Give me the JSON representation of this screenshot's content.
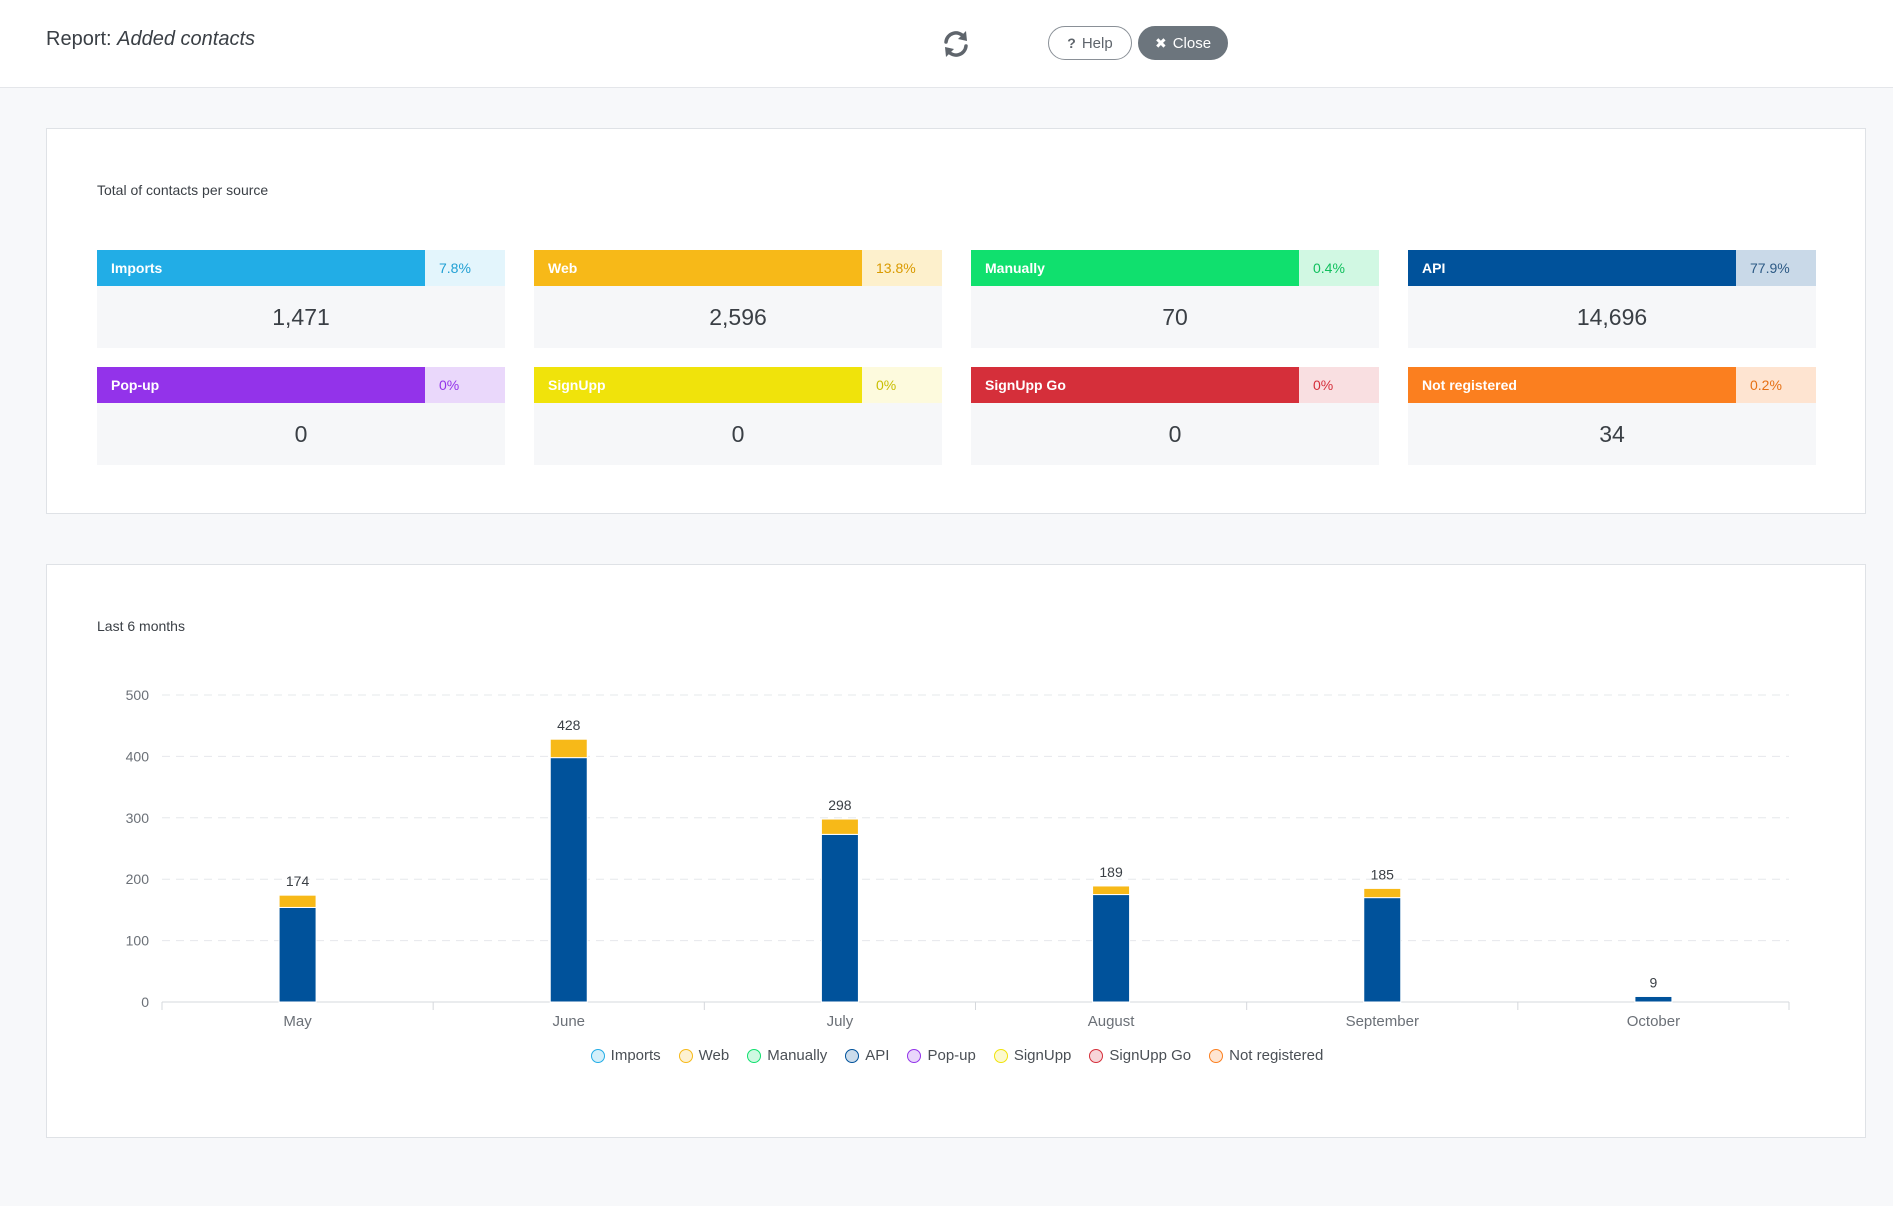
{
  "header": {
    "title_prefix": "Report:",
    "title_name": "Added contacts",
    "help_label": "Help",
    "help_icon": "?",
    "close_label": "Close",
    "close_icon": "✖"
  },
  "totals": {
    "title": "Total of contacts per source",
    "sources": [
      {
        "name": "Imports",
        "percent": "7.8%",
        "value": "1,471",
        "color": "#22ade6",
        "tint": "#e3f5fc",
        "text": "#1f9fd3"
      },
      {
        "name": "Web",
        "percent": "13.8%",
        "value": "2,596",
        "color": "#f7b918",
        "tint": "#fdf0cc",
        "text": "#d99a00"
      },
      {
        "name": "Manually",
        "percent": "0.4%",
        "value": "70",
        "color": "#10e06e",
        "tint": "#d1f8e3",
        "text": "#0fbf5c"
      },
      {
        "name": "API",
        "percent": "77.9%",
        "value": "14,696",
        "color": "#00529b",
        "tint": "#c9d9e8",
        "text": "#2d5a85"
      },
      {
        "name": "Pop-up",
        "percent": "0%",
        "value": "0",
        "color": "#9333ea",
        "tint": "#ead8fb",
        "text": "#9333ea"
      },
      {
        "name": "SignUpp",
        "percent": "0%",
        "value": "0",
        "color": "#f0e30b",
        "tint": "#fdfadd",
        "text": "#c9be00"
      },
      {
        "name": "SignUpp Go",
        "percent": "0%",
        "value": "0",
        "color": "#d52f3a",
        "tint": "#f9dfe1",
        "text": "#d52f3a"
      },
      {
        "name": "Not registered",
        "percent": "0.2%",
        "value": "34",
        "color": "#fb7f1f",
        "tint": "#fee4d1",
        "text": "#e67014"
      }
    ]
  },
  "months_panel": {
    "title": "Last 6 months"
  },
  "chart_data": {
    "type": "bar",
    "stacked": true,
    "categories": [
      "May",
      "June",
      "July",
      "August",
      "September",
      "October"
    ],
    "series": [
      {
        "name": "Imports",
        "color": "#22ade6",
        "values": [
          0,
          0,
          0,
          0,
          0,
          0
        ]
      },
      {
        "name": "Web",
        "color": "#f7b918",
        "values": [
          20,
          30,
          25,
          14,
          15,
          0
        ]
      },
      {
        "name": "Manually",
        "color": "#10e06e",
        "values": [
          0,
          0,
          0,
          0,
          0,
          0
        ]
      },
      {
        "name": "API",
        "color": "#00529b",
        "values": [
          154,
          398,
          273,
          175,
          170,
          9
        ]
      },
      {
        "name": "Pop-up",
        "color": "#9333ea",
        "values": [
          0,
          0,
          0,
          0,
          0,
          0
        ]
      },
      {
        "name": "SignUpp",
        "color": "#f0e30b",
        "values": [
          0,
          0,
          0,
          0,
          0,
          0
        ]
      },
      {
        "name": "SignUpp Go",
        "color": "#d52f3a",
        "values": [
          0,
          0,
          0,
          0,
          0,
          0
        ]
      },
      {
        "name": "Not registered",
        "color": "#fb7f1f",
        "values": [
          0,
          0,
          0,
          0,
          0,
          0
        ]
      }
    ],
    "totals": [
      174,
      428,
      298,
      189,
      185,
      9
    ],
    "yticks": [
      0,
      100,
      200,
      300,
      400,
      500
    ],
    "ylim": [
      0,
      500
    ],
    "grid": true,
    "legend_position": "bottom"
  }
}
